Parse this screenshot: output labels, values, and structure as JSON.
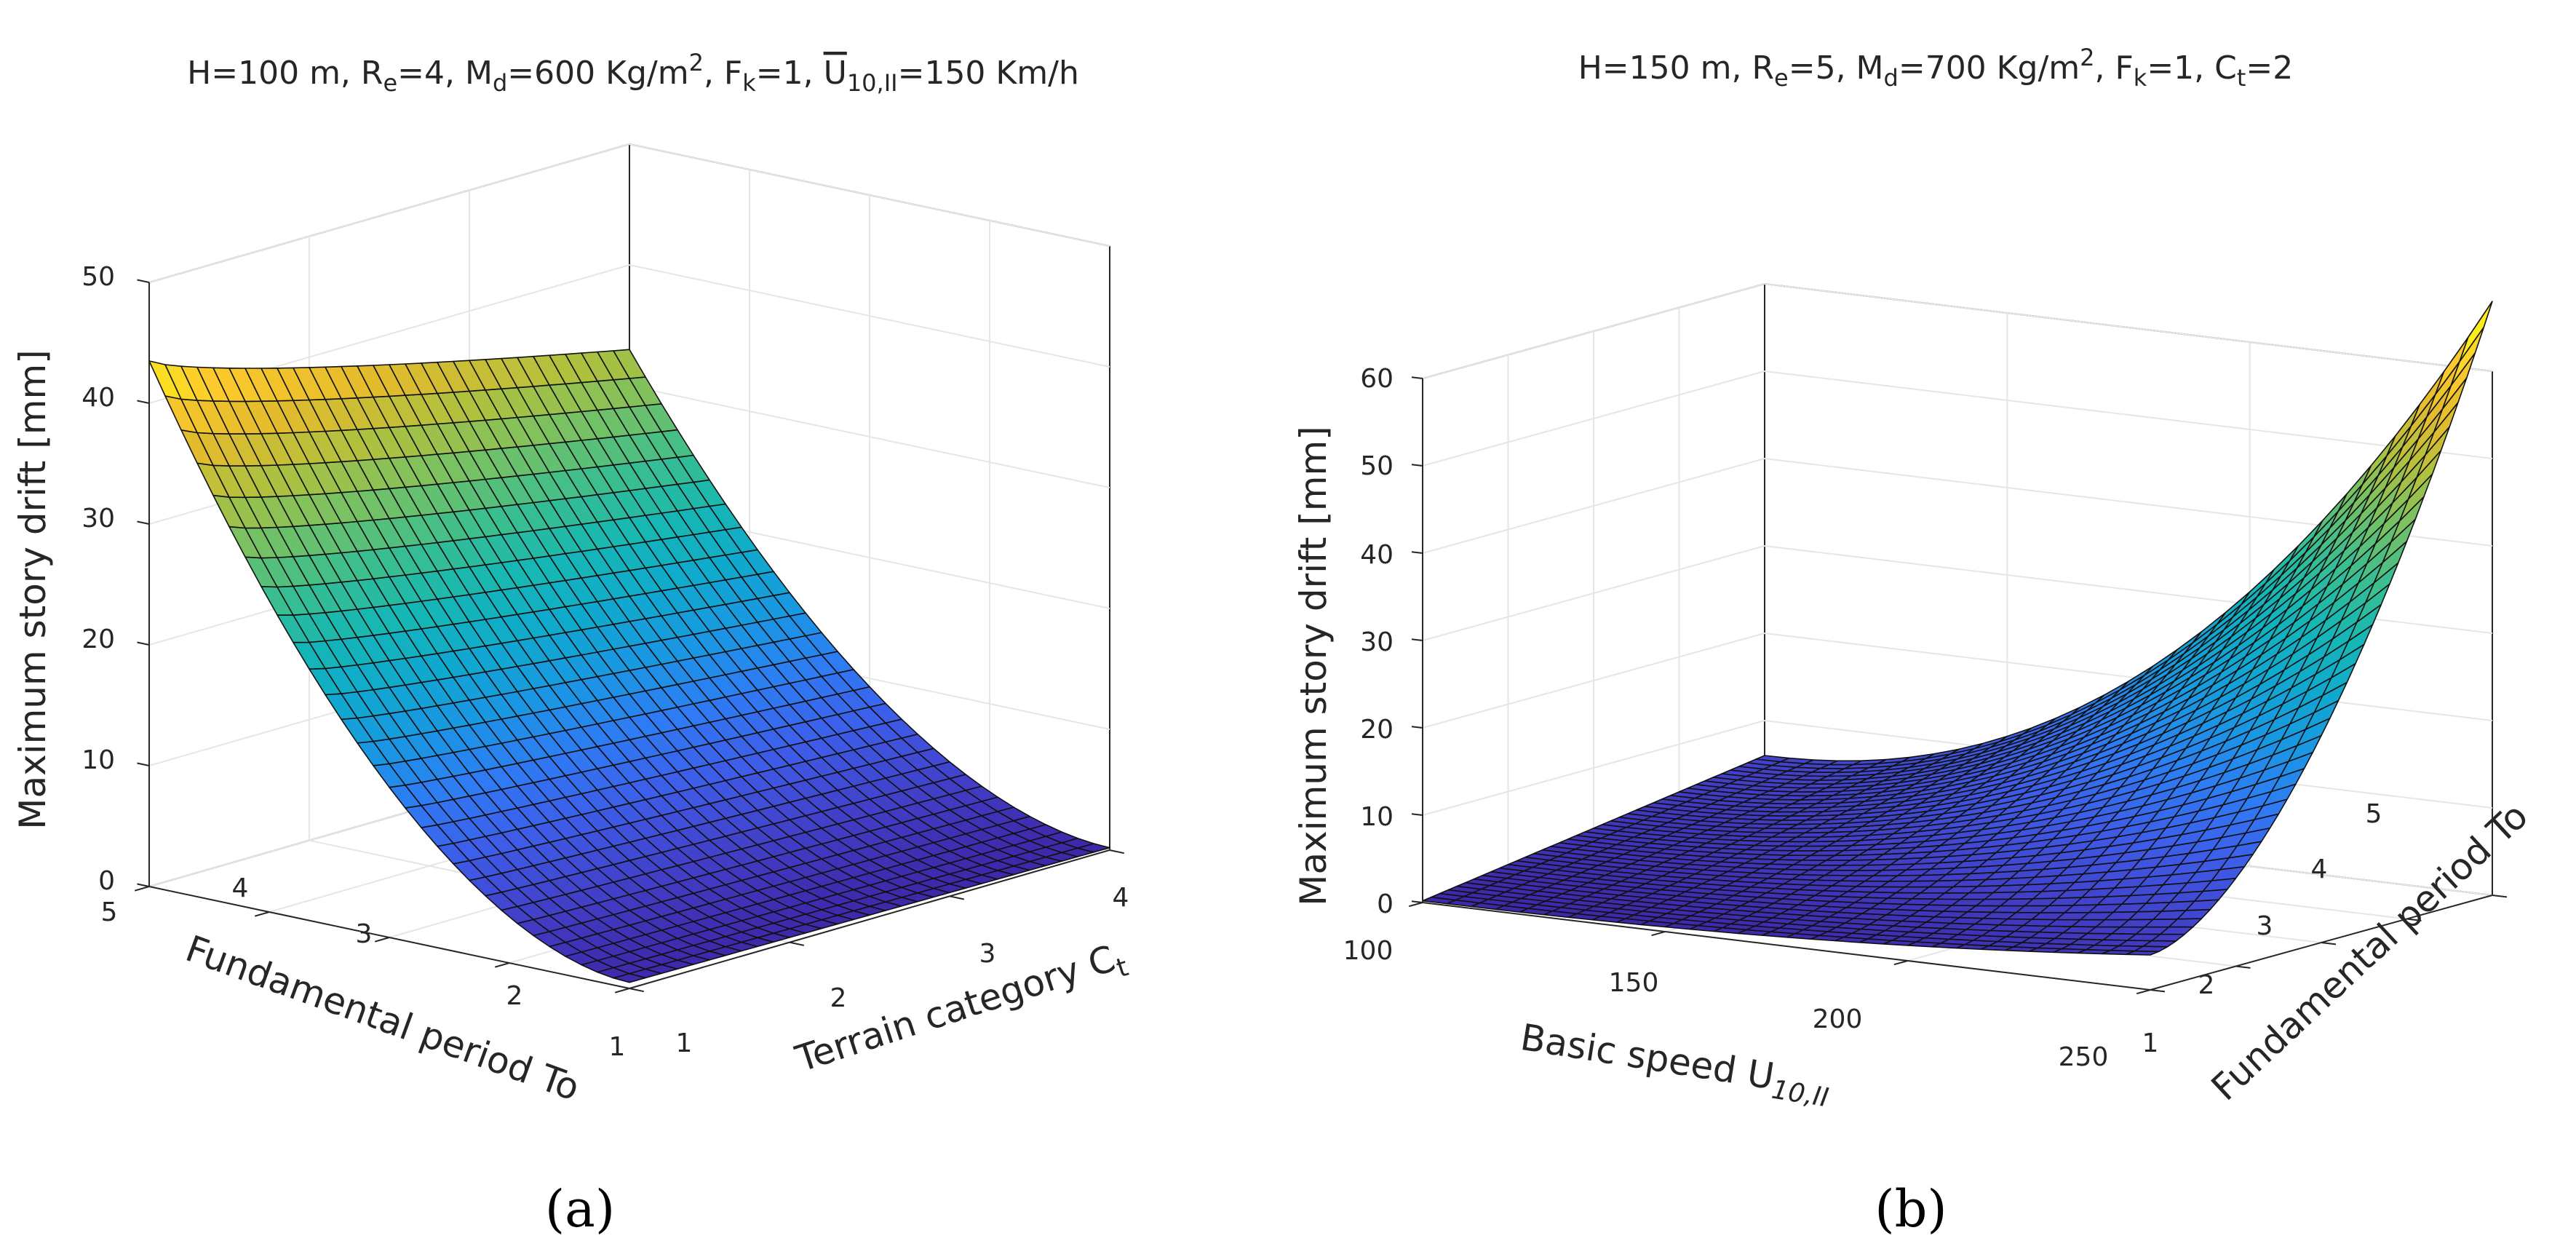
{
  "figure": {
    "panel_labels": [
      "(a)",
      "(b)"
    ]
  },
  "colors": {
    "colormap": [
      "#3e26a8",
      "#4240c9",
      "#3e5ce8",
      "#2f7bf4",
      "#1a97e3",
      "#10a9ce",
      "#16b7b4",
      "#3bbe8f",
      "#73c166",
      "#aec13f",
      "#e2bb2d",
      "#fcca2c",
      "#f9fb15"
    ],
    "edge": "#111111",
    "grid": "#e6e6e6",
    "axis": "#262626"
  },
  "chart_data": [
    {
      "type": "surface",
      "title_parts": {
        "h": "H=100 m, R",
        "re_sub": "e",
        "re": "=4, M",
        "md_sub": "d",
        "md": "=600 Kg/m",
        "md_sup": "2",
        "fk": ", F",
        "fk_sub": "k",
        "fk_val": "=1, ",
        "u_main": "U",
        "u_sub": "10,II",
        "u_val": "=150 Km/h"
      },
      "x": {
        "label": "Fundamental period To",
        "range": [
          1,
          5
        ],
        "ticks": [
          "1",
          "2",
          "3",
          "4",
          "5"
        ]
      },
      "y": {
        "label": "Terrain category C",
        "label_sub": "t",
        "range": [
          1,
          4
        ],
        "ticks": [
          "1",
          "2",
          "3",
          "4"
        ]
      },
      "z": {
        "label": "Maximum story drift [mm]",
        "range": [
          0,
          50
        ],
        "ticks": [
          "0",
          "10",
          "20",
          "30",
          "40",
          "50"
        ]
      },
      "corner_values": {
        "To5_C1": 43.5,
        "To5_C4": 33,
        "To1_C1": 0.5,
        "To1_C4": 0.2
      },
      "grid": {
        "nx": 30,
        "ny": 30
      }
    },
    {
      "type": "surface",
      "title_parts": {
        "h": "H=150 m, R",
        "re_sub": "e",
        "re": "=5, M",
        "md_sub": "d",
        "md": "=700 Kg/m",
        "md_sup": "2",
        "fk": ", F",
        "fk_sub": "k",
        "fk_val": "=1, C",
        "ct_sub": "t",
        "ct_val": "=2"
      },
      "x": {
        "label": "Basic speed U",
        "label_sub": "10,II",
        "range": [
          100,
          250
        ],
        "ticks": [
          "100",
          "150",
          "200",
          "250"
        ]
      },
      "y": {
        "label": "Fundamental period To",
        "range": [
          1,
          5
        ],
        "ticks": [
          "1",
          "2",
          "3",
          "4",
          "5"
        ]
      },
      "z": {
        "label": "Maximum story drift [mm]",
        "range": [
          0,
          60
        ],
        "ticks": [
          "0",
          "10",
          "20",
          "30",
          "40",
          "50",
          "60"
        ]
      },
      "corner_values": {
        "U100_To1": 0.2,
        "U100_To5": 6,
        "U250_To1": 4,
        "U250_To5": 68
      },
      "grid": {
        "nx": 30,
        "ny": 40
      }
    }
  ]
}
